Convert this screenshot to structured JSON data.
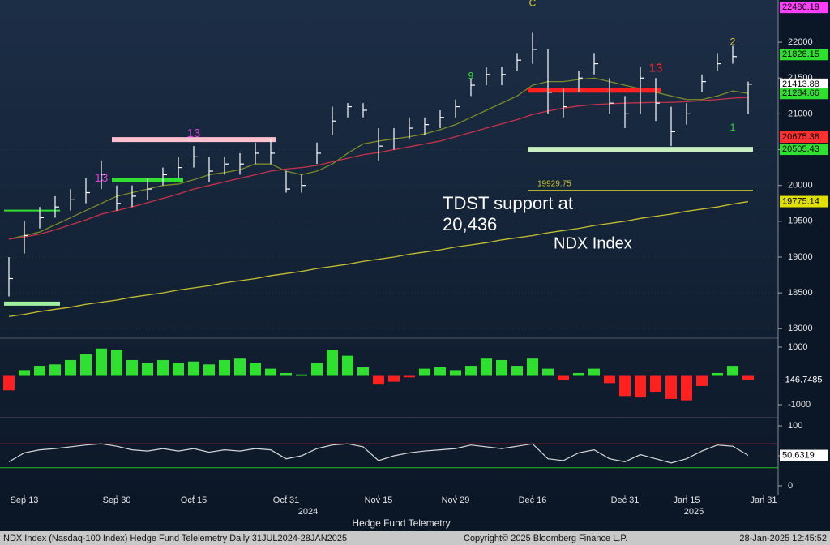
{
  "chart_data": [
    {
      "type": "ohlc",
      "title": "Hedge Fund Telemetry",
      "categories": [
        null,
        "Sep 13",
        null,
        null,
        null,
        null,
        null,
        "Sep 30",
        null,
        null,
        null,
        null,
        "Oct 15",
        null,
        null,
        null,
        null,
        null,
        "Oct 31",
        null,
        null,
        null,
        null,
        null,
        "Nov 15",
        null,
        null,
        null,
        null,
        "Nov 29",
        null,
        null,
        null,
        null,
        "Dec 16",
        null,
        null,
        null,
        null,
        null,
        "Dec 31",
        null,
        null,
        null,
        "Jan 15",
        null,
        null,
        null,
        null,
        "Jan 31"
      ],
      "year_labels": [
        "2024",
        "2025"
      ],
      "high": [
        19000,
        19500,
        19700,
        19850,
        19950,
        20100,
        20350,
        20000,
        20000,
        20100,
        20250,
        20400,
        20550,
        20400,
        20400,
        20450,
        20600,
        20650,
        20200,
        20150,
        20600,
        21100,
        21150,
        21150,
        20800,
        20800,
        20950,
        20950,
        21050,
        21200,
        21500,
        21650,
        21650,
        21850,
        22133,
        21900,
        21350,
        21600,
        21850,
        21500,
        21250,
        21650,
        21500,
        21100,
        21150,
        21550,
        21850,
        21950,
        21450,
        null
      ],
      "low": [
        18450,
        19050,
        19400,
        19550,
        19650,
        19750,
        19950,
        19650,
        19700,
        19800,
        20000,
        20100,
        20250,
        20050,
        20150,
        20150,
        20300,
        20300,
        19900,
        19900,
        20300,
        20700,
        20950,
        20950,
        20350,
        20500,
        20650,
        20700,
        20800,
        20950,
        21250,
        21400,
        21400,
        21600,
        21700,
        21000,
        20950,
        21300,
        21550,
        21000,
        20800,
        21000,
        20900,
        20550,
        20850,
        21300,
        21600,
        21700,
        21000,
        null
      ],
      "close": [
        18700,
        19300,
        19550,
        19700,
        19800,
        19900,
        20150,
        19750,
        19850,
        19950,
        20150,
        20250,
        20400,
        20200,
        20300,
        20300,
        20450,
        20450,
        19950,
        20000,
        20450,
        20900,
        21100,
        21050,
        20550,
        20650,
        20800,
        20850,
        20950,
        21100,
        21400,
        21550,
        21550,
        21750,
        21900,
        21300,
        21100,
        21500,
        21700,
        21150,
        21000,
        21500,
        21150,
        20750,
        21000,
        21450,
        21700,
        21800,
        21413.88,
        null
      ],
      "color": "#ffffff",
      "lines": [
        {
          "color": "#7d8a2a",
          "values": [
            19250,
            19300,
            19350,
            19450,
            19550,
            19650,
            19750,
            19850,
            19900,
            19950,
            20000,
            20020,
            20080,
            20150,
            20180,
            20220,
            20300,
            20300,
            20200,
            20150,
            20200,
            20300,
            20450,
            20580,
            20620,
            20650,
            20680,
            20720,
            20780,
            20850,
            20950,
            21050,
            21150,
            21250,
            21400,
            21450,
            21450,
            21480,
            21500,
            21450,
            21400,
            21350,
            21300,
            21250,
            21200,
            21200,
            21250,
            21320,
            21284.66,
            null
          ]
        },
        {
          "color": "#c8324a",
          "values": [
            19250,
            19280,
            19320,
            19380,
            19450,
            19520,
            19600,
            19650,
            19700,
            19760,
            19820,
            19880,
            19950,
            20000,
            20050,
            20100,
            20150,
            20200,
            20230,
            20250,
            20280,
            20330,
            20380,
            20430,
            20460,
            20500,
            20540,
            20580,
            20620,
            20680,
            20740,
            20800,
            20860,
            20920,
            20990,
            21040,
            21080,
            21110,
            21130,
            21140,
            21150,
            21155,
            21160,
            21160,
            21170,
            21185,
            21200,
            21220,
            21230,
            null
          ]
        },
        {
          "color": "#c8c030",
          "values": [
            18170,
            18200,
            18240,
            18270,
            18300,
            18340,
            18370,
            18400,
            18440,
            18470,
            18500,
            18540,
            18570,
            18600,
            18640,
            18670,
            18700,
            18740,
            18770,
            18800,
            18840,
            18870,
            18900,
            18940,
            18970,
            19000,
            19040,
            19070,
            19100,
            19140,
            19170,
            19200,
            19240,
            19270,
            19300,
            19340,
            19370,
            19400,
            19440,
            19470,
            19500,
            19540,
            19570,
            19600,
            19640,
            19670,
            19700,
            19740,
            19775.14,
            null
          ]
        }
      ],
      "levels": [
        {
          "value": 21330,
          "color": "#ff2020"
        },
        {
          "value": 20505.43,
          "color": "#c8f0c0"
        },
        {
          "value": 20640,
          "color": "#ffc0d0"
        },
        {
          "value": 20080,
          "color": "#30e030"
        },
        {
          "value": 19929.75,
          "color": "#c8c030"
        },
        {
          "value": 19650,
          "color": "#30e030"
        },
        {
          "value": 18350,
          "color": "#a0f0a0"
        }
      ],
      "td_counts": [
        {
          "label": "13",
          "color": "#d040d0"
        },
        {
          "label": "13",
          "color": "#d040d0"
        },
        {
          "label": "9",
          "color": "#30e030"
        },
        {
          "label": "C",
          "color": "#e0c030"
        },
        {
          "label": "13",
          "color": "#ff3030"
        },
        {
          "label": "2",
          "color": "#e0c030"
        },
        {
          "label": "1",
          "color": "#30e030"
        }
      ],
      "annotations": [
        "TDST support at",
        "20,436",
        "NDX Index"
      ],
      "last_values": [
        {
          "value": 22486.19,
          "color": "#ff40ff"
        },
        {
          "value": 21828.15,
          "color": "#30e030"
        },
        {
          "value": 21413.88,
          "color": "#ffffff"
        },
        {
          "value": 21284.66,
          "color": "#30e030"
        },
        {
          "value": 20675.38,
          "color": "#ff3030"
        },
        {
          "value": 20505.43,
          "color": "#30e030"
        },
        {
          "value": 19775.14,
          "color": "#e0e000"
        }
      ],
      "ylim": [
        17890,
        22590
      ],
      "yticks": [
        18000,
        18500,
        19000,
        19500,
        20000,
        20500,
        21000,
        21500,
        22000
      ]
    },
    {
      "type": "bar",
      "positive_color": "#30e030",
      "negative_color": "#ff2020",
      "values": [
        -500,
        200,
        350,
        400,
        550,
        750,
        950,
        900,
        550,
        450,
        550,
        450,
        500,
        400,
        550,
        600,
        450,
        250,
        100,
        50,
        450,
        900,
        700,
        300,
        -300,
        -200,
        -50,
        250,
        300,
        200,
        350,
        600,
        550,
        350,
        600,
        250,
        -150,
        100,
        250,
        -250,
        -700,
        -750,
        -550,
        -800,
        -850,
        -350,
        100,
        350,
        -146.7485,
        null
      ],
      "last_value": -146.7485,
      "ylim": [
        -1366,
        1225
      ],
      "yticks": [
        1000,
        -1000
      ]
    },
    {
      "type": "line",
      "color": "#d8d8d8",
      "values": [
        40,
        55,
        60,
        62,
        65,
        68,
        70,
        66,
        60,
        58,
        62,
        58,
        62,
        56,
        60,
        58,
        62,
        60,
        45,
        50,
        62,
        68,
        70,
        65,
        42,
        50,
        55,
        58,
        60,
        62,
        68,
        65,
        62,
        66,
        70,
        45,
        42,
        55,
        60,
        45,
        40,
        52,
        45,
        38,
        45,
        58,
        68,
        66,
        50.6319,
        null
      ],
      "last_value": 50.6319,
      "reference_lines": [
        {
          "value": 70,
          "color": "#d02020"
        },
        {
          "value": 30,
          "color": "#20c020"
        }
      ],
      "ylim": [
        -14.9,
        109.5
      ],
      "yticks": [
        0,
        50,
        100
      ]
    }
  ],
  "footer": {
    "left": "NDX Index (Nasdaq-100 Index) Hedge Fund Telelemetry  Daily 31JUL2024-28JAN2025",
    "center": "Copyright© 2025 Bloomberg Finance L.P.",
    "right": "28-Jan-2025 12:45:52"
  }
}
